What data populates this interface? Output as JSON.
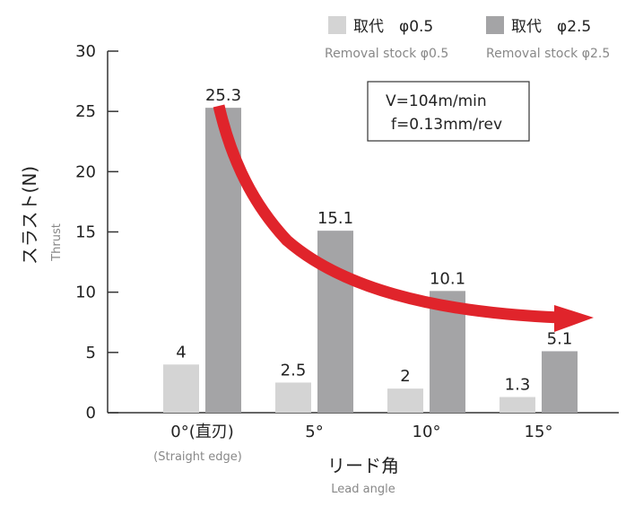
{
  "chart_data": {
    "type": "bar",
    "categories": [
      "0°(直刃)",
      "5°",
      "10°",
      "15°"
    ],
    "category_sublabels": [
      "(Straight edge)",
      "",
      "",
      ""
    ],
    "series": [
      {
        "name": "取代　φ0.5",
        "sub_name": "Removal stock φ0.5",
        "values": [
          4,
          2.5,
          2,
          1.3
        ],
        "labels": [
          "4",
          "2.5",
          "2",
          "1.3"
        ],
        "color": "#d4d4d4"
      },
      {
        "name": "取代　φ2.5",
        "sub_name": "Removal stock φ2.5",
        "values": [
          25.3,
          15.1,
          10.1,
          5.1
        ],
        "labels": [
          "25.3",
          "15.1",
          "10.1",
          "5.1"
        ],
        "color": "#a4a4a6"
      }
    ],
    "ylabel": "スラスト(N)",
    "ylabel_sub": "Thrust",
    "xlabel": "リード角",
    "xlabel_sub": "Lead angle",
    "ylim": [
      0,
      30
    ],
    "yticks": [
      "0",
      "5",
      "10",
      "15",
      "20",
      "25",
      "30"
    ],
    "grid": false,
    "legend_position": "top-right",
    "annotation_lines": [
      "V=104m/min",
      "f=0.13mm/rev"
    ],
    "trend_arrow_color": "#e0242b"
  }
}
